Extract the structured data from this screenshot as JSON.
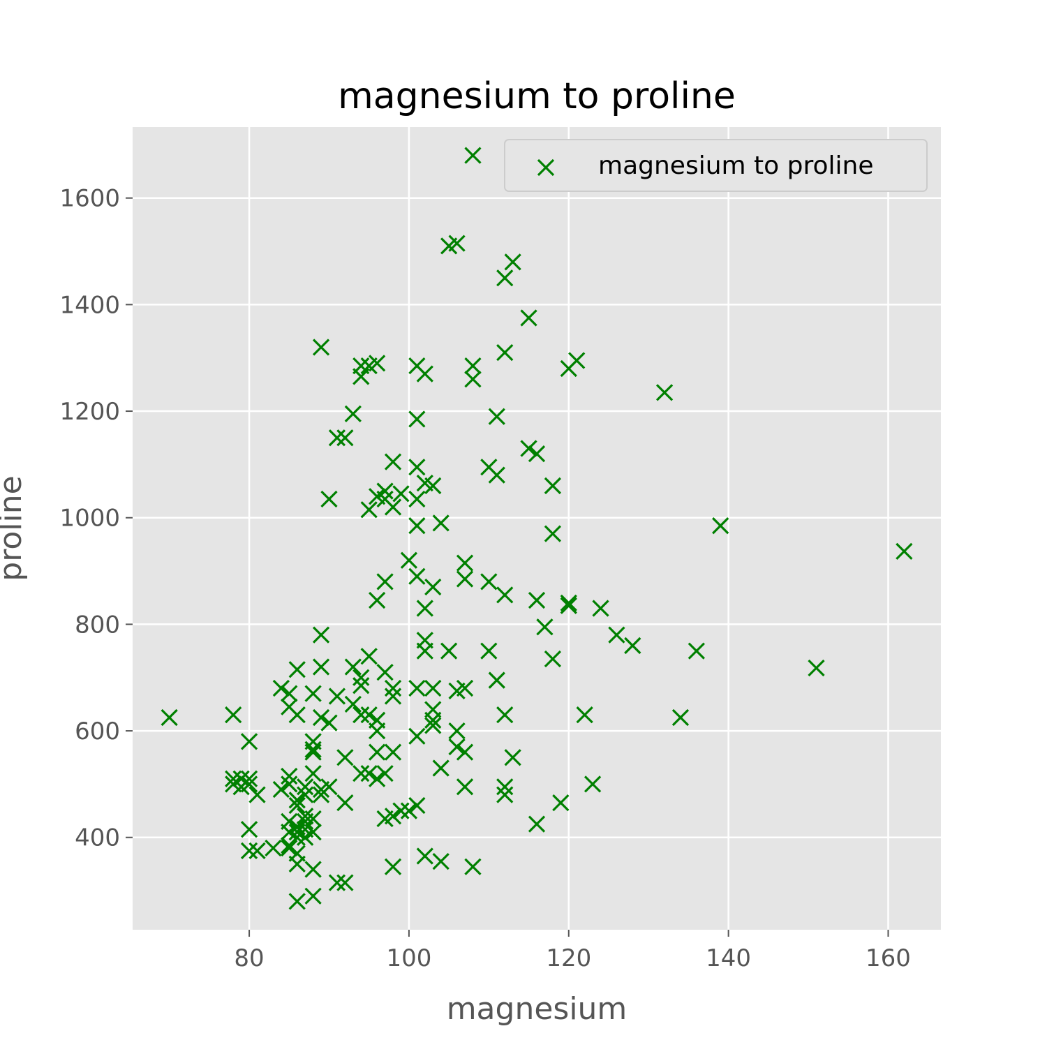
{
  "chart_data": {
    "type": "scatter",
    "title": "magnesium to proline",
    "xlabel": "magnesium",
    "ylabel": "proline",
    "xlim": [
      65.4,
      166.6
    ],
    "ylim": [
      226.75,
      1733.25
    ],
    "xticks": [
      80,
      100,
      120,
      140,
      160
    ],
    "yticks": [
      400,
      600,
      800,
      1000,
      1200,
      1400,
      1600
    ],
    "grid": true,
    "legend": {
      "placement": "top-right"
    },
    "marker": "x",
    "colors": {
      "marker": "#008000",
      "plot_bg": "#e5e5e5",
      "grid": "#ffffff",
      "tick_text": "#555555"
    },
    "series": [
      {
        "name": "magnesium to proline",
        "points": [
          [
            70,
            625
          ],
          [
            78,
            630
          ],
          [
            78,
            510
          ],
          [
            78,
            500
          ],
          [
            79,
            510
          ],
          [
            79,
            495
          ],
          [
            80,
            580
          ],
          [
            80,
            510
          ],
          [
            80,
            500
          ],
          [
            80,
            415
          ],
          [
            80,
            375
          ],
          [
            81,
            480
          ],
          [
            81,
            375
          ],
          [
            83,
            380
          ],
          [
            84,
            680
          ],
          [
            84,
            490
          ],
          [
            85,
            670
          ],
          [
            85,
            645
          ],
          [
            85,
            515
          ],
          [
            85,
            500
          ],
          [
            85,
            430
          ],
          [
            85,
            410
          ],
          [
            85,
            385
          ],
          [
            85,
            380
          ],
          [
            86,
            715
          ],
          [
            86,
            630
          ],
          [
            86,
            470
          ],
          [
            86,
            460
          ],
          [
            86,
            420
          ],
          [
            86,
            410
          ],
          [
            86,
            400
          ],
          [
            86,
            370
          ],
          [
            86,
            350
          ],
          [
            86,
            280
          ],
          [
            87,
            495
          ],
          [
            87,
            480
          ],
          [
            87,
            440
          ],
          [
            87,
            430
          ],
          [
            87,
            415
          ],
          [
            87,
            400
          ],
          [
            88,
            670
          ],
          [
            88,
            580
          ],
          [
            88,
            565
          ],
          [
            88,
            560
          ],
          [
            88,
            520
          ],
          [
            88,
            435
          ],
          [
            88,
            410
          ],
          [
            88,
            340
          ],
          [
            88,
            290
          ],
          [
            89,
            1320
          ],
          [
            89,
            780
          ],
          [
            89,
            720
          ],
          [
            89,
            625
          ],
          [
            89,
            490
          ],
          [
            89,
            480
          ],
          [
            90,
            1035
          ],
          [
            90,
            615
          ],
          [
            90,
            495
          ],
          [
            91,
            1150
          ],
          [
            91,
            665
          ],
          [
            91,
            315
          ],
          [
            92,
            1150
          ],
          [
            92,
            550
          ],
          [
            92,
            465
          ],
          [
            92,
            315
          ],
          [
            93,
            1195
          ],
          [
            93,
            720
          ],
          [
            93,
            650
          ],
          [
            94,
            1285
          ],
          [
            94,
            1265
          ],
          [
            94,
            700
          ],
          [
            94,
            685
          ],
          [
            94,
            630
          ],
          [
            94,
            520
          ],
          [
            95,
            1285
          ],
          [
            95,
            1015
          ],
          [
            95,
            740
          ],
          [
            95,
            630
          ],
          [
            95,
            520
          ],
          [
            96,
            1290
          ],
          [
            96,
            1040
          ],
          [
            96,
            845
          ],
          [
            96,
            620
          ],
          [
            96,
            600
          ],
          [
            96,
            560
          ],
          [
            96,
            510
          ],
          [
            97,
            1050
          ],
          [
            97,
            1035
          ],
          [
            97,
            880
          ],
          [
            97,
            710
          ],
          [
            97,
            520
          ],
          [
            97,
            435
          ],
          [
            98,
            1105
          ],
          [
            98,
            1020
          ],
          [
            98,
            680
          ],
          [
            98,
            665
          ],
          [
            98,
            560
          ],
          [
            98,
            440
          ],
          [
            98,
            345
          ],
          [
            99,
            1045
          ],
          [
            99,
            450
          ],
          [
            100,
            920
          ],
          [
            100,
            450
          ],
          [
            101,
            1285
          ],
          [
            101,
            1185
          ],
          [
            101,
            1095
          ],
          [
            101,
            1035
          ],
          [
            101,
            985
          ],
          [
            101,
            890
          ],
          [
            101,
            680
          ],
          [
            101,
            590
          ],
          [
            101,
            460
          ],
          [
            102,
            1270
          ],
          [
            102,
            1065
          ],
          [
            102,
            830
          ],
          [
            102,
            770
          ],
          [
            102,
            750
          ],
          [
            102,
            365
          ],
          [
            103,
            1060
          ],
          [
            103,
            870
          ],
          [
            103,
            680
          ],
          [
            103,
            640
          ],
          [
            103,
            620
          ],
          [
            103,
            610
          ],
          [
            104,
            990
          ],
          [
            104,
            530
          ],
          [
            104,
            355
          ],
          [
            105,
            750
          ],
          [
            105,
            1510
          ],
          [
            106,
            1515
          ],
          [
            106,
            600
          ],
          [
            106,
            570
          ],
          [
            106,
            675
          ],
          [
            107,
            915
          ],
          [
            107,
            885
          ],
          [
            107,
            680
          ],
          [
            107,
            560
          ],
          [
            107,
            495
          ],
          [
            108,
            1680
          ],
          [
            108,
            1285
          ],
          [
            108,
            1260
          ],
          [
            108,
            345
          ],
          [
            110,
            1095
          ],
          [
            110,
            880
          ],
          [
            110,
            750
          ],
          [
            111,
            1190
          ],
          [
            111,
            1080
          ],
          [
            111,
            695
          ],
          [
            112,
            1310
          ],
          [
            112,
            1450
          ],
          [
            112,
            855
          ],
          [
            112,
            630
          ],
          [
            112,
            495
          ],
          [
            112,
            480
          ],
          [
            113,
            1480
          ],
          [
            113,
            550
          ],
          [
            115,
            1375
          ],
          [
            115,
            1130
          ],
          [
            116,
            1120
          ],
          [
            116,
            845
          ],
          [
            116,
            425
          ],
          [
            117,
            795
          ],
          [
            118,
            1060
          ],
          [
            118,
            970
          ],
          [
            118,
            735
          ],
          [
            119,
            465
          ],
          [
            120,
            1280
          ],
          [
            120,
            840
          ],
          [
            120,
            835
          ],
          [
            121,
            1295
          ],
          [
            122,
            630
          ],
          [
            123,
            500
          ],
          [
            124,
            830
          ],
          [
            126,
            780
          ],
          [
            128,
            760
          ],
          [
            132,
            1235
          ],
          [
            134,
            625
          ],
          [
            136,
            750
          ],
          [
            139,
            985
          ],
          [
            151,
            718
          ],
          [
            162,
            937
          ]
        ]
      }
    ]
  }
}
